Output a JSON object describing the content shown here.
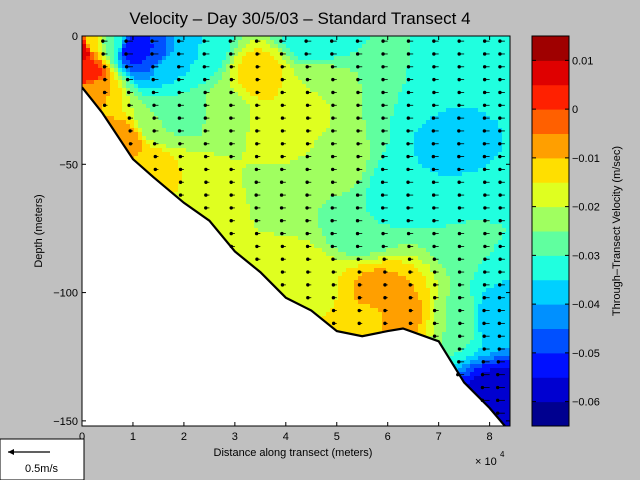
{
  "chart_data": {
    "type": "heatmap",
    "title": "Velocity – Day 30/5/03 – Standard Transect 4",
    "xlabel": "Distance along transect (meters)",
    "x_multiplier": "× 10",
    "x_multiplier_exp": "4",
    "ylabel": "Depth (meters)",
    "colorbar_label": "Through–Transect Velocity (m/sec)",
    "x_ticks": [
      "0",
      "1",
      "2",
      "3",
      "4",
      "5",
      "6",
      "7",
      "8"
    ],
    "y_ticks": [
      "0",
      "−50",
      "−100",
      "−150"
    ],
    "colorbar_ticks": [
      "0.01",
      "0",
      "−0.01",
      "−0.02",
      "−0.03",
      "−0.04",
      "−0.05",
      "−0.06"
    ],
    "xlim": [
      0,
      84000
    ],
    "ylim": [
      -152,
      0
    ],
    "clim": [
      -0.065,
      0.015
    ],
    "colormap": [
      "#00008f",
      "#0000d0",
      "#0010ff",
      "#0050ff",
      "#0090ff",
      "#00d0ff",
      "#20ffdf",
      "#60ff9f",
      "#a0ff60",
      "#dfff20",
      "#ffdf00",
      "#ff9f00",
      "#ff6000",
      "#ff2000",
      "#df0000",
      "#9f0000"
    ],
    "bottom_profile": [
      [
        0,
        -20
      ],
      [
        2000,
        -25
      ],
      [
        4000,
        -30
      ],
      [
        6000,
        -36
      ],
      [
        8000,
        -42
      ],
      [
        10000,
        -48
      ],
      [
        14000,
        -55
      ],
      [
        20000,
        -65
      ],
      [
        25000,
        -72
      ],
      [
        30000,
        -84
      ],
      [
        35000,
        -92
      ],
      [
        40000,
        -102
      ],
      [
        45000,
        -107
      ],
      [
        50000,
        -115
      ],
      [
        55000,
        -117
      ],
      [
        60000,
        -115
      ],
      [
        63000,
        -114
      ],
      [
        70000,
        -119
      ],
      [
        75000,
        -135
      ],
      [
        80000,
        -145
      ],
      [
        83000,
        -152
      ]
    ],
    "field_anchors": [
      {
        "x": 0,
        "y": -5,
        "v": 0.01
      },
      {
        "x": 1000,
        "y": -14,
        "v": 0.005
      },
      {
        "x": 2500,
        "y": -22,
        "v": -0.01
      },
      {
        "x": 2200,
        "y": -3,
        "v": -0.015
      },
      {
        "x": 6000,
        "y": -3,
        "v": -0.03
      },
      {
        "x": 10000,
        "y": -5,
        "v": -0.055
      },
      {
        "x": 13000,
        "y": -8,
        "v": -0.05
      },
      {
        "x": 17000,
        "y": -14,
        "v": -0.035
      },
      {
        "x": 8000,
        "y": -42,
        "v": -0.005
      },
      {
        "x": 13000,
        "y": -50,
        "v": -0.012
      },
      {
        "x": 15000,
        "y": -35,
        "v": -0.025
      },
      {
        "x": 20000,
        "y": -58,
        "v": -0.015
      },
      {
        "x": 20000,
        "y": -30,
        "v": -0.028
      },
      {
        "x": 23000,
        "y": -5,
        "v": -0.035
      },
      {
        "x": 28000,
        "y": -30,
        "v": -0.022
      },
      {
        "x": 27000,
        "y": -70,
        "v": -0.018
      },
      {
        "x": 35000,
        "y": -15,
        "v": -0.012
      },
      {
        "x": 40000,
        "y": -35,
        "v": -0.015
      },
      {
        "x": 40000,
        "y": -65,
        "v": -0.025
      },
      {
        "x": 38000,
        "y": -90,
        "v": -0.015
      },
      {
        "x": 46000,
        "y": -100,
        "v": -0.016
      },
      {
        "x": 45000,
        "y": -20,
        "v": -0.02
      },
      {
        "x": 50000,
        "y": -50,
        "v": -0.023
      },
      {
        "x": 55000,
        "y": -75,
        "v": -0.03
      },
      {
        "x": 58000,
        "y": -100,
        "v": -0.008
      },
      {
        "x": 62000,
        "y": -108,
        "v": -0.008
      },
      {
        "x": 56000,
        "y": -110,
        "v": -0.011
      },
      {
        "x": 63000,
        "y": -60,
        "v": -0.035
      },
      {
        "x": 65000,
        "y": -20,
        "v": -0.03
      },
      {
        "x": 72000,
        "y": -40,
        "v": -0.037
      },
      {
        "x": 75000,
        "y": -110,
        "v": -0.025
      },
      {
        "x": 80000,
        "y": -110,
        "v": -0.04
      },
      {
        "x": 82000,
        "y": -140,
        "v": -0.058
      },
      {
        "x": 80000,
        "y": -10,
        "v": -0.033
      },
      {
        "x": 76000,
        "y": -75,
        "v": -0.03
      },
      {
        "x": 45000,
        "y": -1,
        "v": -0.035
      }
    ],
    "arrow_columns_x": [
      0,
      5000,
      10000,
      15000,
      20000,
      25000,
      30000,
      35000,
      40000,
      45000,
      50000,
      55000,
      60000,
      65000,
      70000,
      75000,
      80000,
      83000
    ],
    "arrow_depth_step": 5
  },
  "scale_key": {
    "label": "0.5m/s"
  }
}
